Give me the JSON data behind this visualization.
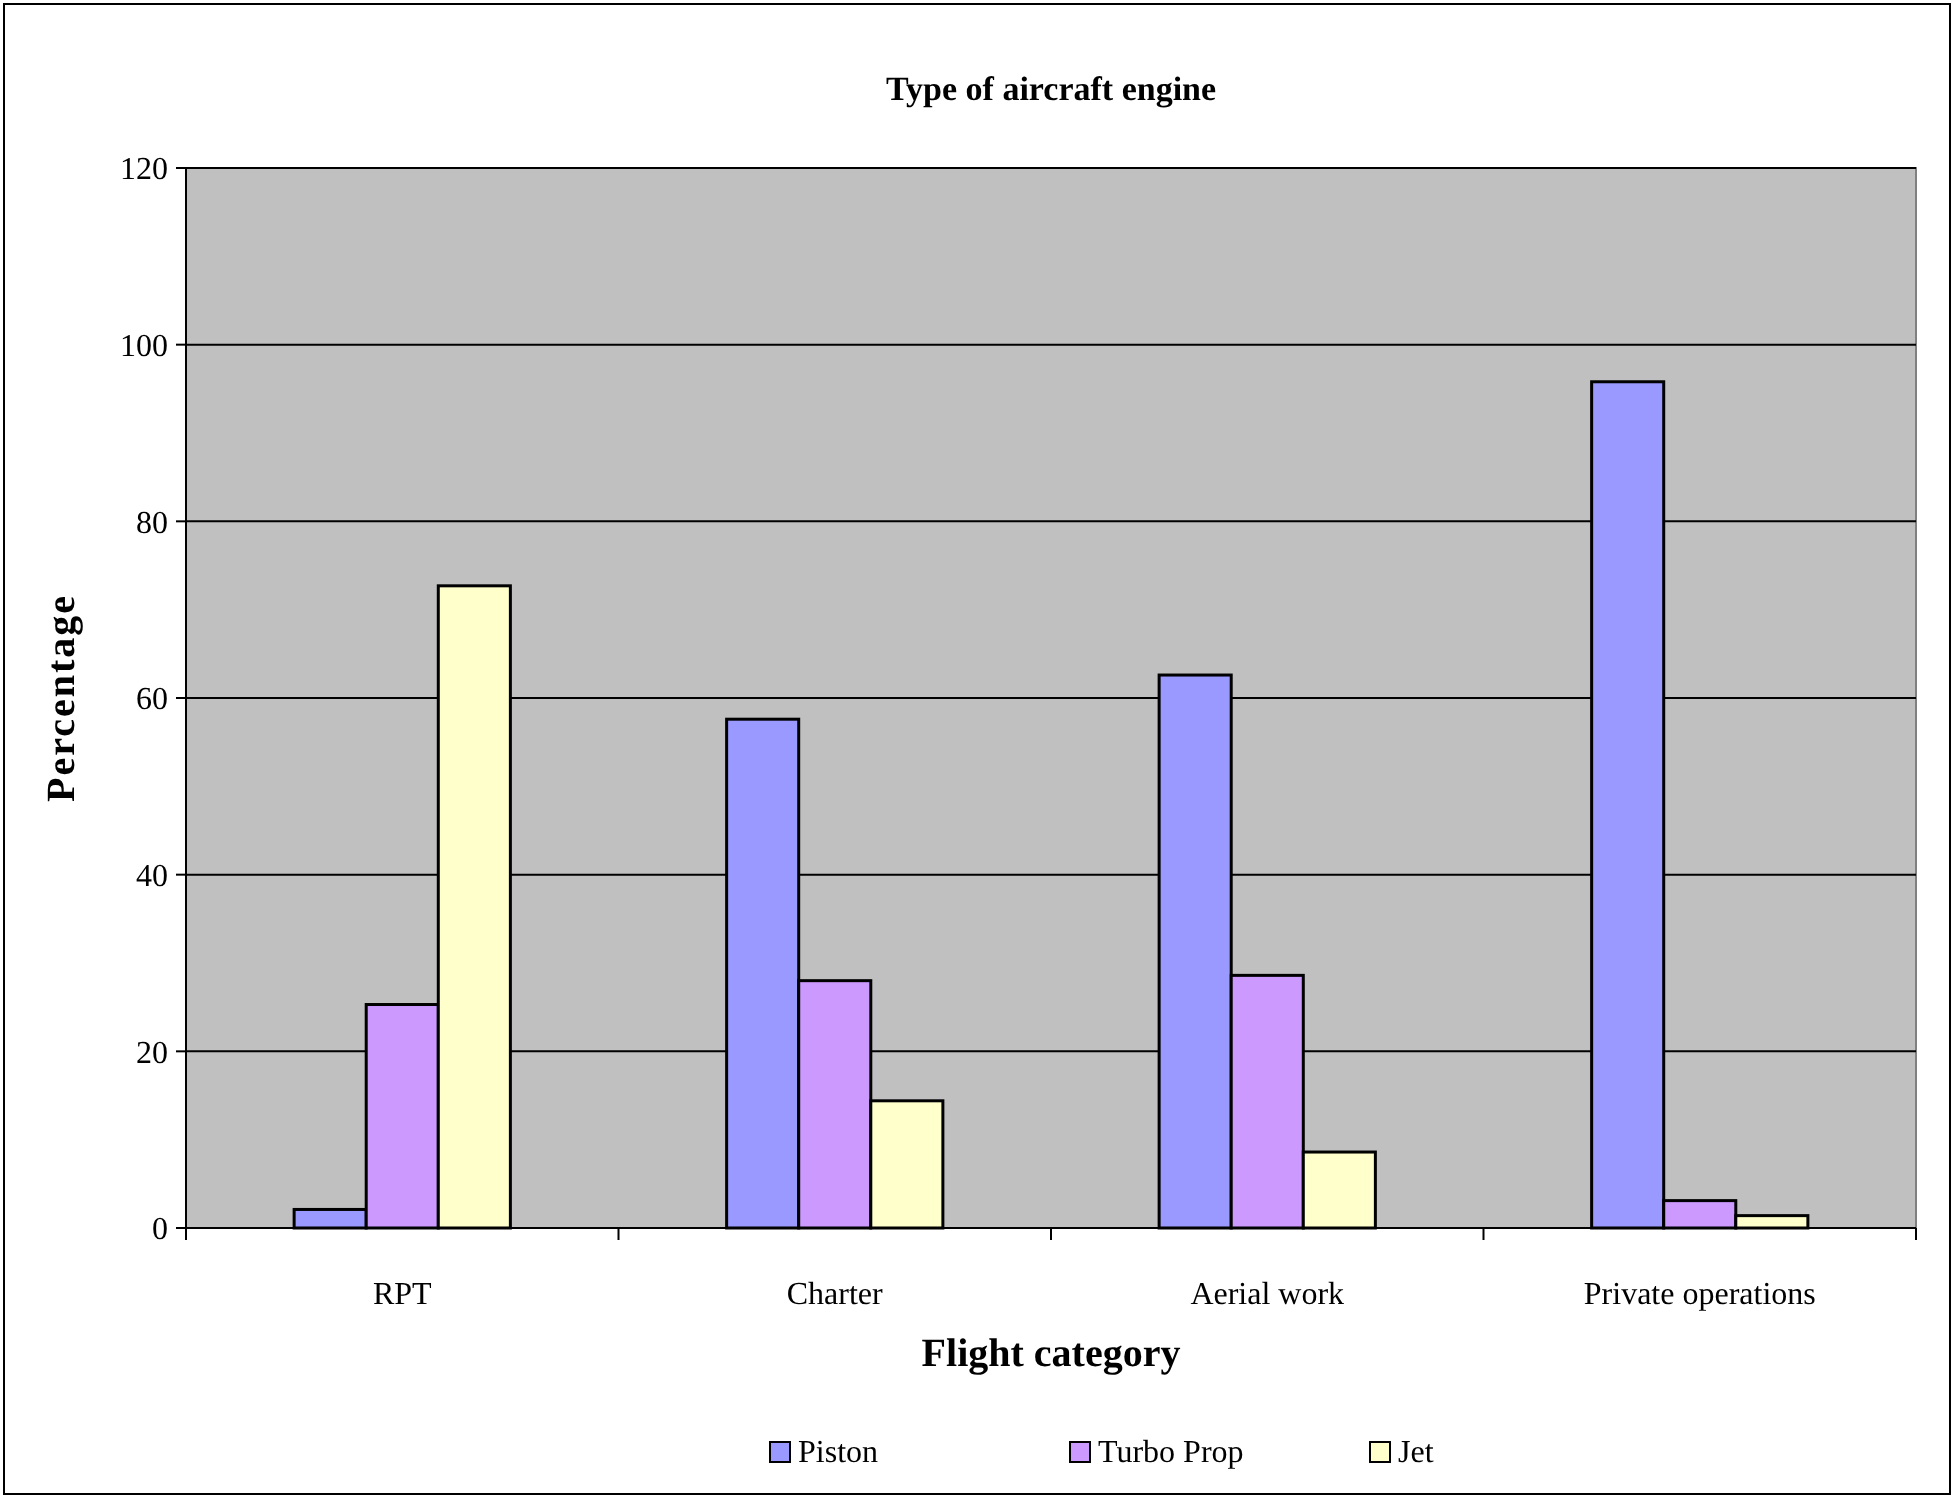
{
  "chart_data": {
    "type": "bar",
    "title": "Type of aircraft engine",
    "xlabel": "Flight category",
    "ylabel": "Percentage",
    "categories": [
      "RPT",
      "Charter",
      "Aerial work",
      "Private operations"
    ],
    "series": [
      {
        "name": "Piston",
        "color": "#9999ff",
        "values": [
          2.1,
          57.6,
          62.6,
          95.8
        ]
      },
      {
        "name": "Turbo Prop",
        "color": "#cc99ff",
        "values": [
          25.3,
          28.0,
          28.6,
          3.1
        ]
      },
      {
        "name": "Jet",
        "color": "#ffffcc",
        "values": [
          72.7,
          14.4,
          8.6,
          1.4
        ]
      }
    ],
    "ylim": [
      0,
      120
    ],
    "yticks": [
      0,
      20,
      40,
      60,
      80,
      100,
      120
    ],
    "grid": "y",
    "legend": "bottom"
  }
}
